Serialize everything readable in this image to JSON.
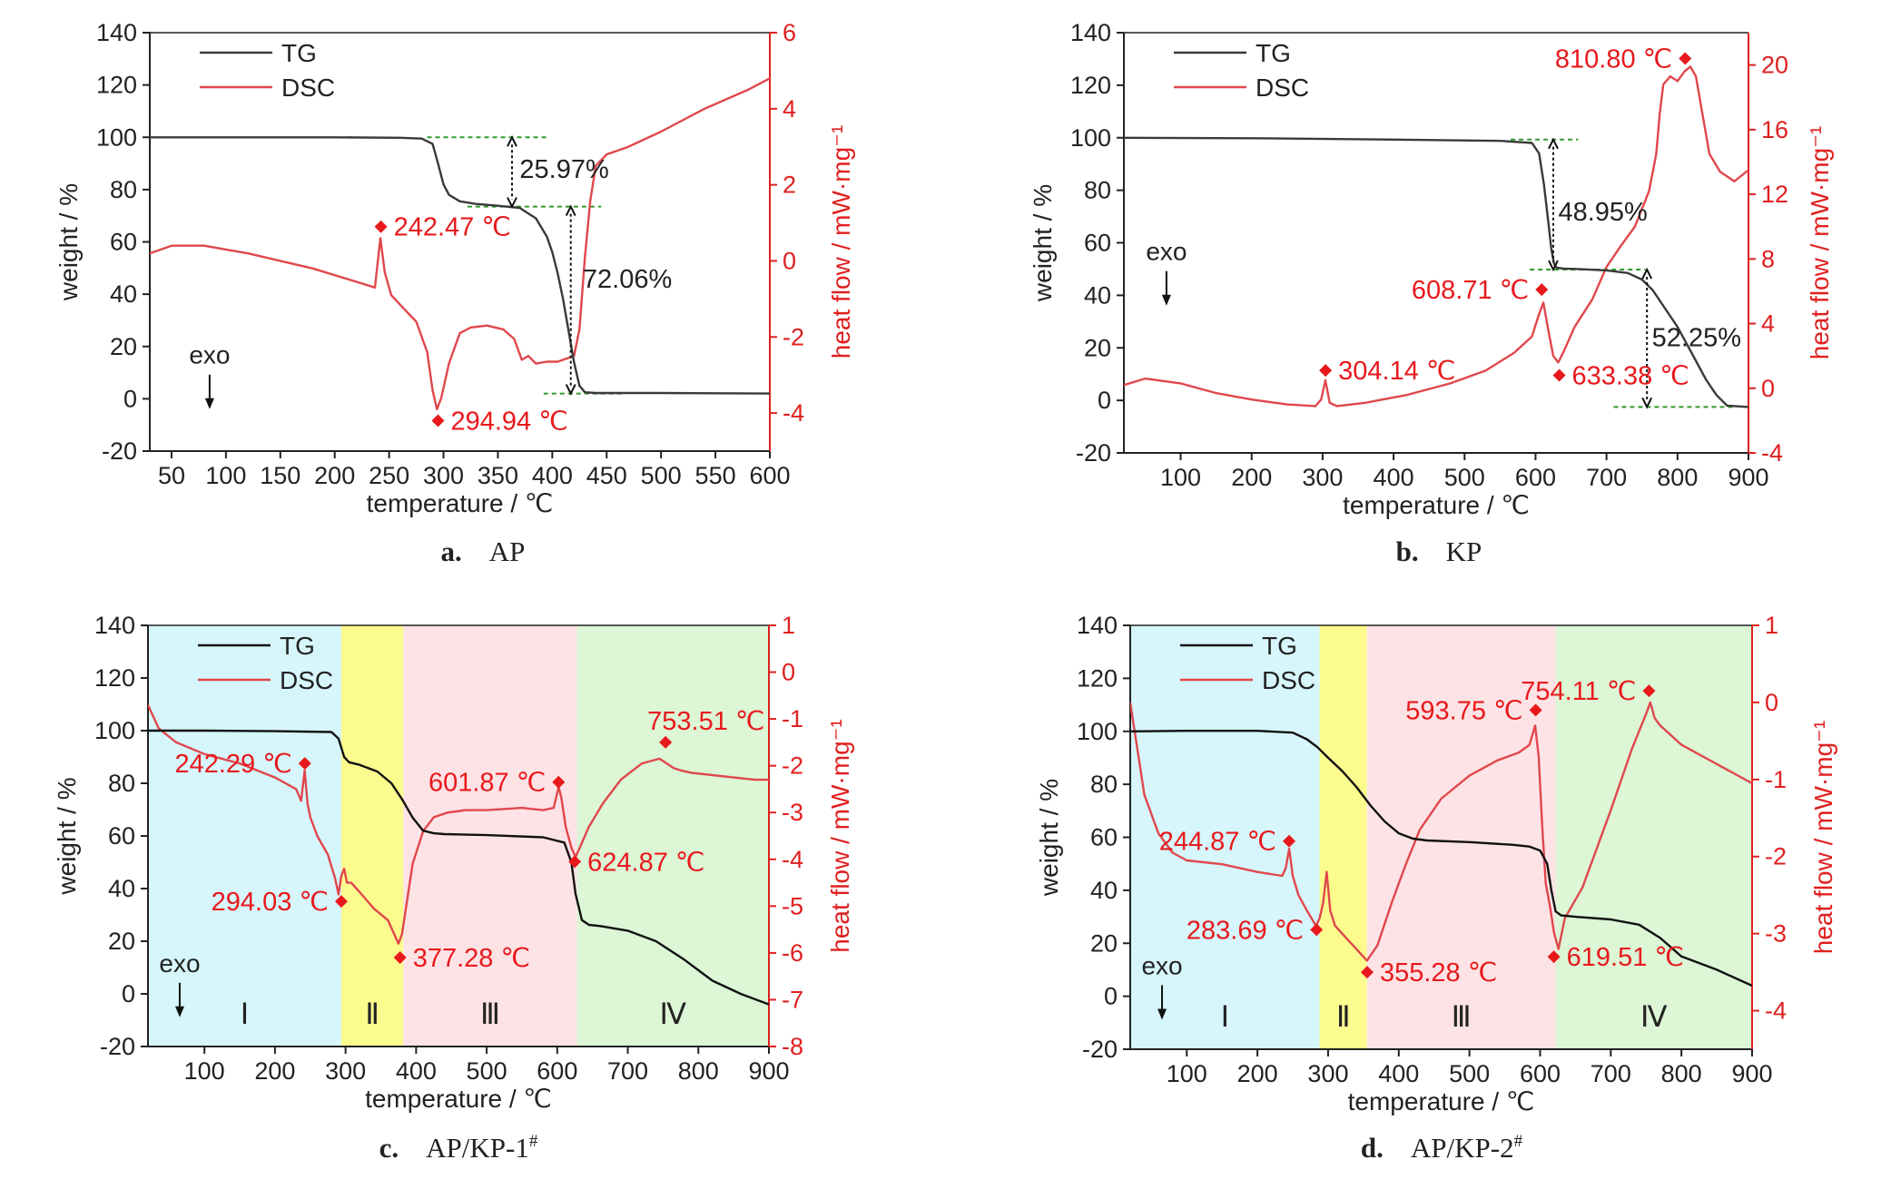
{
  "colors": {
    "tg": "#3a3a3a",
    "tg_cd": "#111111",
    "dsc": "#e0474c",
    "dsc_axis": "#e02020",
    "marker": "#e8191c",
    "guide": "#2e9a2e",
    "region_I": "#d6f6fb",
    "region_II": "#fbfb8e",
    "region_III": "#fde3e5",
    "region_IV": "#dcf6d6"
  },
  "chart_data": [
    {
      "id": "a",
      "type": "line",
      "caption_letter": "a.",
      "caption_text": "AP",
      "xlabel": "temperature / ℃",
      "ylabel": "weight / %",
      "y2label": "heat flow / mW·mg⁻¹",
      "xlim": [
        30,
        600
      ],
      "xticks": [
        50,
        100,
        150,
        200,
        250,
        300,
        350,
        400,
        450,
        500,
        550,
        600
      ],
      "ylim": [
        -20,
        140
      ],
      "yticks": [
        -20,
        0,
        20,
        40,
        60,
        80,
        100,
        120,
        140
      ],
      "y2lim": [
        -5,
        6
      ],
      "y2ticks": [
        -4,
        -2,
        0,
        2,
        4,
        6
      ],
      "legend": [
        "TG",
        "DSC"
      ],
      "legend_position": "top-left",
      "exo_label": "exo",
      "exo_at": [
        85,
        3
      ],
      "tg": {
        "name": "TG",
        "x": [
          30,
          100,
          200,
          260,
          280,
          290,
          295,
          300,
          305,
          315,
          330,
          350,
          370,
          385,
          395,
          400,
          405,
          410,
          415,
          420,
          425,
          430,
          440,
          500,
          600
        ],
        "y": [
          100,
          100,
          100,
          99.8,
          99.5,
          97.5,
          90,
          82,
          78,
          75.5,
          74.5,
          73.8,
          73,
          69,
          62,
          56,
          48,
          38,
          26,
          14,
          5,
          2.5,
          2.2,
          2.2,
          2.0
        ]
      },
      "dsc": {
        "name": "DSC",
        "x": [
          30,
          50,
          80,
          120,
          180,
          220,
          237,
          242,
          246,
          252,
          260,
          275,
          285,
          290,
          294,
          298,
          305,
          315,
          325,
          340,
          355,
          365,
          372,
          378,
          385,
          395,
          405,
          415,
          420,
          425,
          430,
          435,
          440,
          450,
          470,
          500,
          540,
          580,
          600
        ],
        "y": [
          0.2,
          0.4,
          0.4,
          0.2,
          -0.2,
          -0.55,
          -0.7,
          0.6,
          -0.3,
          -0.9,
          -1.15,
          -1.6,
          -2.4,
          -3.4,
          -3.9,
          -3.6,
          -2.7,
          -1.9,
          -1.75,
          -1.7,
          -1.8,
          -2.05,
          -2.6,
          -2.5,
          -2.7,
          -2.65,
          -2.65,
          -2.55,
          -2.5,
          -1.8,
          0.1,
          1.6,
          2.5,
          2.8,
          3.0,
          3.4,
          4.0,
          4.5,
          4.8
        ]
      },
      "markers": [
        {
          "on": "y2",
          "x": 242.47,
          "y": 0.9,
          "label": "242.47 ℃",
          "side": "right"
        },
        {
          "on": "y2",
          "x": 294.94,
          "y": -4.2,
          "label": "294.94 ℃",
          "side": "right"
        }
      ],
      "guides": [
        {
          "y": 100,
          "x1": 285,
          "x2": 395
        },
        {
          "y": 73.5,
          "x1": 322,
          "x2": 445
        },
        {
          "y": 2,
          "x1": 392,
          "x2": 465
        }
      ],
      "arrows": [
        {
          "x": 363,
          "y1": 100,
          "y2": 73.5,
          "label": "25.97%",
          "label_x": 370,
          "label_y": 88
        },
        {
          "x": 417,
          "y1": 73.5,
          "y2": 2,
          "label": "72.06%",
          "label_x": 428,
          "label_y": 46
        }
      ],
      "regions": []
    },
    {
      "id": "b",
      "type": "line",
      "caption_letter": "b.",
      "caption_text": "KP",
      "xlabel": "temperature / ℃",
      "ylabel": "weight / %",
      "y2label": "heat flow / mW·mg⁻¹",
      "xlim": [
        20,
        900
      ],
      "xticks": [
        100,
        200,
        300,
        400,
        500,
        600,
        700,
        800,
        900
      ],
      "ylim": [
        -20,
        140
      ],
      "yticks": [
        -20,
        0,
        20,
        40,
        60,
        80,
        100,
        120,
        140
      ],
      "y2lim": [
        -4,
        22
      ],
      "y2ticks": [
        -4,
        0,
        4,
        8,
        12,
        16,
        20
      ],
      "legend": [
        "TG",
        "DSC"
      ],
      "legend_position": "top-left",
      "exo_label": "exo",
      "exo_at": [
        80,
        43
      ],
      "tg": {
        "name": "TG",
        "x": [
          20,
          200,
          400,
          550,
          595,
          605,
          612,
          618,
          622,
          626,
          630,
          640,
          660,
          700,
          730,
          750,
          765,
          780,
          800,
          820,
          840,
          855,
          870,
          900
        ],
        "y": [
          100,
          99.8,
          99.3,
          98.8,
          98,
          94,
          82,
          68,
          58,
          52,
          50.5,
          50.2,
          50,
          49.5,
          48.5,
          46,
          42,
          36,
          28,
          18,
          8,
          2,
          -2,
          -2.5
        ]
      },
      "dsc": {
        "name": "DSC",
        "x": [
          20,
          50,
          100,
          150,
          200,
          250,
          290,
          298,
          304,
          310,
          320,
          360,
          420,
          480,
          530,
          570,
          595,
          605,
          611,
          618,
          625,
          632,
          640,
          655,
          680,
          700,
          720,
          740,
          760,
          770,
          775,
          780,
          790,
          800,
          810,
          818,
          826,
          835,
          845,
          860,
          880,
          900
        ],
        "y": [
          0.2,
          0.6,
          0.3,
          -0.3,
          -0.7,
          -1.0,
          -1.1,
          -0.7,
          0.5,
          -0.9,
          -1.1,
          -0.9,
          -0.4,
          0.3,
          1.1,
          2.2,
          3.2,
          4.6,
          5.3,
          3.6,
          2.0,
          1.6,
          2.3,
          3.8,
          5.5,
          7.5,
          8.8,
          10.0,
          12.2,
          14.5,
          17,
          18.8,
          19.3,
          19.0,
          19.6,
          19.9,
          19.3,
          17.0,
          14.5,
          13.4,
          12.8,
          13.5
        ]
      },
      "markers": [
        {
          "on": "y2",
          "x": 304.14,
          "y": 1.1,
          "label": "304.14 ℃",
          "side": "right"
        },
        {
          "on": "y2",
          "x": 608.71,
          "y": 6.1,
          "label": "608.71 ℃",
          "side": "left"
        },
        {
          "on": "y2",
          "x": 633.38,
          "y": 0.8,
          "label": "633.38 ℃",
          "side": "right"
        },
        {
          "on": "y2",
          "x": 810.8,
          "y": 20.4,
          "label": "810.80 ℃",
          "side": "left"
        }
      ],
      "guides": [
        {
          "y": 99.3,
          "x1": 565,
          "x2": 660
        },
        {
          "y": 49.8,
          "x1": 592,
          "x2": 755
        },
        {
          "y": -2.5,
          "x1": 710,
          "x2": 880
        }
      ],
      "arrows": [
        {
          "x": 625,
          "y1": 99.3,
          "y2": 49.8,
          "label": "48.95%",
          "label_x": 632,
          "label_y": 72
        },
        {
          "x": 757,
          "y1": 49.8,
          "y2": -2.5,
          "label": "52.25%",
          "label_x": 764,
          "label_y": 24
        }
      ],
      "regions": []
    },
    {
      "id": "c",
      "type": "line",
      "caption_letter": "c.",
      "caption_text": "AP/KP-1",
      "caption_sup": "#",
      "xlabel": "temperature / ℃",
      "ylabel": "weight / %",
      "y2label": "heat flow / mW·mg⁻¹",
      "xlim": [
        20,
        900
      ],
      "xticks": [
        100,
        200,
        300,
        400,
        500,
        600,
        700,
        800,
        900
      ],
      "ylim": [
        -20,
        140
      ],
      "yticks": [
        -20,
        0,
        20,
        40,
        60,
        80,
        100,
        120,
        140
      ],
      "y2lim": [
        -8,
        1
      ],
      "y2ticks": [
        -8,
        -7,
        -6,
        -5,
        -4,
        -3,
        -2,
        -1,
        0,
        1
      ],
      "legend": [
        "TG",
        "DSC"
      ],
      "legend_position": "top-left",
      "exo_label": "exo",
      "exo_at": [
        65,
        -2
      ],
      "tg": {
        "name": "TG",
        "x": [
          20,
          100,
          200,
          280,
          290,
          298,
          305,
          320,
          345,
          365,
          380,
          395,
          410,
          425,
          440,
          500,
          580,
          610,
          620,
          626,
          635,
          645,
          660,
          700,
          740,
          780,
          820,
          860,
          900
        ],
        "y": [
          100,
          100,
          99.8,
          99.5,
          97,
          90,
          88,
          87,
          84.5,
          80,
          74,
          67,
          62,
          61,
          60.7,
          60.3,
          59.5,
          57.5,
          50,
          38,
          28,
          26.2,
          25.8,
          24,
          20,
          13,
          5,
          0,
          -4
        ]
      },
      "dsc": {
        "name": "DSC",
        "x": [
          20,
          35,
          60,
          100,
          150,
          200,
          230,
          237,
          242,
          246,
          250,
          260,
          275,
          285,
          290,
          294,
          298,
          302,
          308,
          320,
          340,
          360,
          375,
          380,
          386,
          395,
          410,
          425,
          445,
          470,
          500,
          550,
          580,
          595,
          602,
          606,
          612,
          620,
          626,
          632,
          645,
          665,
          690,
          720,
          745,
          755,
          765,
          775,
          790,
          820,
          850,
          880,
          900
        ],
        "y": [
          -0.7,
          -1.2,
          -1.5,
          -1.75,
          -1.95,
          -2.25,
          -2.5,
          -2.75,
          -2.1,
          -2.8,
          -3.1,
          -3.5,
          -3.9,
          -4.4,
          -4.75,
          -4.35,
          -4.2,
          -4.5,
          -4.5,
          -4.7,
          -5.05,
          -5.3,
          -5.8,
          -5.6,
          -5.0,
          -4.1,
          -3.4,
          -3.1,
          -3.0,
          -2.95,
          -2.95,
          -2.9,
          -2.95,
          -2.9,
          -2.45,
          -2.7,
          -3.3,
          -3.75,
          -3.95,
          -3.75,
          -3.3,
          -2.8,
          -2.3,
          -1.95,
          -1.85,
          -1.95,
          -2.05,
          -2.1,
          -2.15,
          -2.2,
          -2.25,
          -2.3,
          -2.3
        ]
      },
      "markers": [
        {
          "on": "y2",
          "x": 242.29,
          "y": -1.95,
          "label": "242.29 ℃",
          "side": "left"
        },
        {
          "on": "y2",
          "x": 294.03,
          "y": -4.9,
          "label": "294.03 ℃",
          "side": "left"
        },
        {
          "on": "y2",
          "x": 377.28,
          "y": -6.1,
          "label": "377.28 ℃",
          "side": "right"
        },
        {
          "on": "y2",
          "x": 601.87,
          "y": -2.35,
          "label": "601.87 ℃",
          "side": "left"
        },
        {
          "on": "y2",
          "x": 624.87,
          "y": -4.05,
          "label": "624.87 ℃",
          "side": "right"
        },
        {
          "on": "y2",
          "x": 753.51,
          "y": -1.5,
          "label": "753.51 ℃",
          "side": "right_up"
        }
      ],
      "guides": [],
      "arrows": [],
      "regions": [
        {
          "label": "Ⅰ",
          "x1": 20,
          "x2": 294,
          "color_key": "region_I"
        },
        {
          "label": "Ⅱ",
          "x1": 294,
          "x2": 382,
          "color_key": "region_II"
        },
        {
          "label": "Ⅲ",
          "x1": 382,
          "x2": 628,
          "color_key": "region_III"
        },
        {
          "label": "Ⅳ",
          "x1": 628,
          "x2": 900,
          "color_key": "region_IV"
        }
      ]
    },
    {
      "id": "d",
      "type": "line",
      "caption_letter": "d.",
      "caption_text": "AP/KP-2",
      "caption_sup": "#",
      "xlabel": "temperature / ℃",
      "ylabel": "weight / %",
      "y2label": "heat flow / mW·mg⁻¹",
      "xlim": [
        20,
        900
      ],
      "xticks": [
        100,
        200,
        300,
        400,
        500,
        600,
        700,
        800,
        900
      ],
      "ylim": [
        -20,
        140
      ],
      "yticks": [
        -20,
        0,
        20,
        40,
        60,
        80,
        100,
        120,
        140
      ],
      "y2lim": [
        -4.5,
        1
      ],
      "y2ticks": [
        -4,
        -3,
        -2,
        -1,
        0,
        1
      ],
      "legend": [
        "TG",
        "DSC"
      ],
      "legend_position": "top-left",
      "exo_label": "exo",
      "exo_at": [
        65,
        -2
      ],
      "tg": {
        "name": "TG",
        "x": [
          20,
          100,
          200,
          250,
          270,
          285,
          300,
          320,
          340,
          360,
          380,
          400,
          420,
          440,
          500,
          560,
          585,
          600,
          610,
          616,
          622,
          630,
          650,
          700,
          740,
          770,
          800,
          850,
          900
        ],
        "y": [
          100,
          100.2,
          100.2,
          99.5,
          97,
          94,
          90,
          85,
          79,
          72,
          66,
          61.5,
          59.5,
          58.8,
          58.2,
          57.2,
          56.5,
          55,
          50,
          40,
          32,
          30.5,
          30,
          29,
          27,
          22,
          15,
          10,
          4
        ]
      },
      "dsc": {
        "name": "DSC",
        "x": [
          20,
          25,
          40,
          60,
          80,
          100,
          150,
          200,
          235,
          240,
          245,
          250,
          258,
          270,
          283,
          288,
          293,
          298,
          303,
          310,
          325,
          340,
          355,
          370,
          390,
          410,
          430,
          460,
          500,
          540,
          570,
          585,
          593,
          598,
          603,
          608,
          614,
          620,
          626,
          635,
          660,
          700,
          730,
          750,
          756,
          762,
          770,
          800,
          850,
          900
        ],
        "y": [
          0,
          -0.3,
          -1.2,
          -1.7,
          -1.95,
          -2.05,
          -2.1,
          -2.2,
          -2.25,
          -2.15,
          -1.9,
          -2.25,
          -2.5,
          -2.7,
          -2.9,
          -2.8,
          -2.6,
          -2.2,
          -2.7,
          -2.9,
          -3.05,
          -3.2,
          -3.35,
          -3.15,
          -2.6,
          -2.1,
          -1.65,
          -1.25,
          -0.95,
          -0.75,
          -0.65,
          -0.55,
          -0.3,
          -0.7,
          -1.6,
          -2.35,
          -2.65,
          -3.0,
          -3.2,
          -2.8,
          -2.4,
          -1.4,
          -0.6,
          -0.15,
          0.0,
          -0.2,
          -0.3,
          -0.55,
          -0.8,
          -1.05
        ]
      },
      "markers": [
        {
          "on": "y2",
          "x": 244.87,
          "y": -1.8,
          "label": "244.87 ℃",
          "side": "left"
        },
        {
          "on": "y2",
          "x": 283.69,
          "y": -2.95,
          "label": "283.69 ℃",
          "side": "left"
        },
        {
          "on": "y2",
          "x": 355.28,
          "y": -3.5,
          "label": "355.28 ℃",
          "side": "right"
        },
        {
          "on": "y2",
          "x": 593.75,
          "y": -0.1,
          "label": "593.75 ℃",
          "side": "left"
        },
        {
          "on": "y2",
          "x": 619.51,
          "y": -3.3,
          "label": "619.51 ℃",
          "side": "right"
        },
        {
          "on": "y2",
          "x": 754.11,
          "y": 0.15,
          "label": "754.11 ℃",
          "side": "left"
        }
      ],
      "guides": [],
      "arrows": [],
      "regions": [
        {
          "label": "Ⅰ",
          "x1": 20,
          "x2": 288,
          "color_key": "region_I"
        },
        {
          "label": "Ⅱ",
          "x1": 288,
          "x2": 355,
          "color_key": "region_II"
        },
        {
          "label": "Ⅲ",
          "x1": 355,
          "x2": 622,
          "color_key": "region_III"
        },
        {
          "label": "Ⅳ",
          "x1": 622,
          "x2": 900,
          "color_key": "region_IV"
        }
      ]
    }
  ]
}
